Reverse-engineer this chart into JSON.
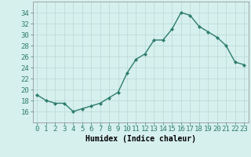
{
  "x": [
    0,
    1,
    2,
    3,
    4,
    5,
    6,
    7,
    8,
    9,
    10,
    11,
    12,
    13,
    14,
    15,
    16,
    17,
    18,
    19,
    20,
    21,
    22,
    23
  ],
  "y": [
    19.0,
    18.0,
    17.5,
    17.5,
    16.0,
    16.5,
    17.0,
    17.5,
    18.5,
    19.5,
    23.0,
    25.5,
    26.5,
    29.0,
    29.0,
    31.0,
    34.0,
    33.5,
    31.5,
    30.5,
    29.5,
    28.0,
    25.0,
    24.5
  ],
  "line_color": "#2e7d6e",
  "marker": "D",
  "marker_size": 2.0,
  "bg_color": "#d6f0ee",
  "grid_color": "#b8d8d4",
  "tick_color": "#2e7d6e",
  "xlabel": "Humidex (Indice chaleur)",
  "ylim": [
    14,
    36
  ],
  "yticks": [
    16,
    18,
    20,
    22,
    24,
    26,
    28,
    30,
    32,
    34
  ],
  "xticks": [
    0,
    1,
    2,
    3,
    4,
    5,
    6,
    7,
    8,
    9,
    10,
    11,
    12,
    13,
    14,
    15,
    16,
    17,
    18,
    19,
    20,
    21,
    22,
    23
  ],
  "xlabel_fontsize": 7,
  "tick_fontsize": 6.5
}
